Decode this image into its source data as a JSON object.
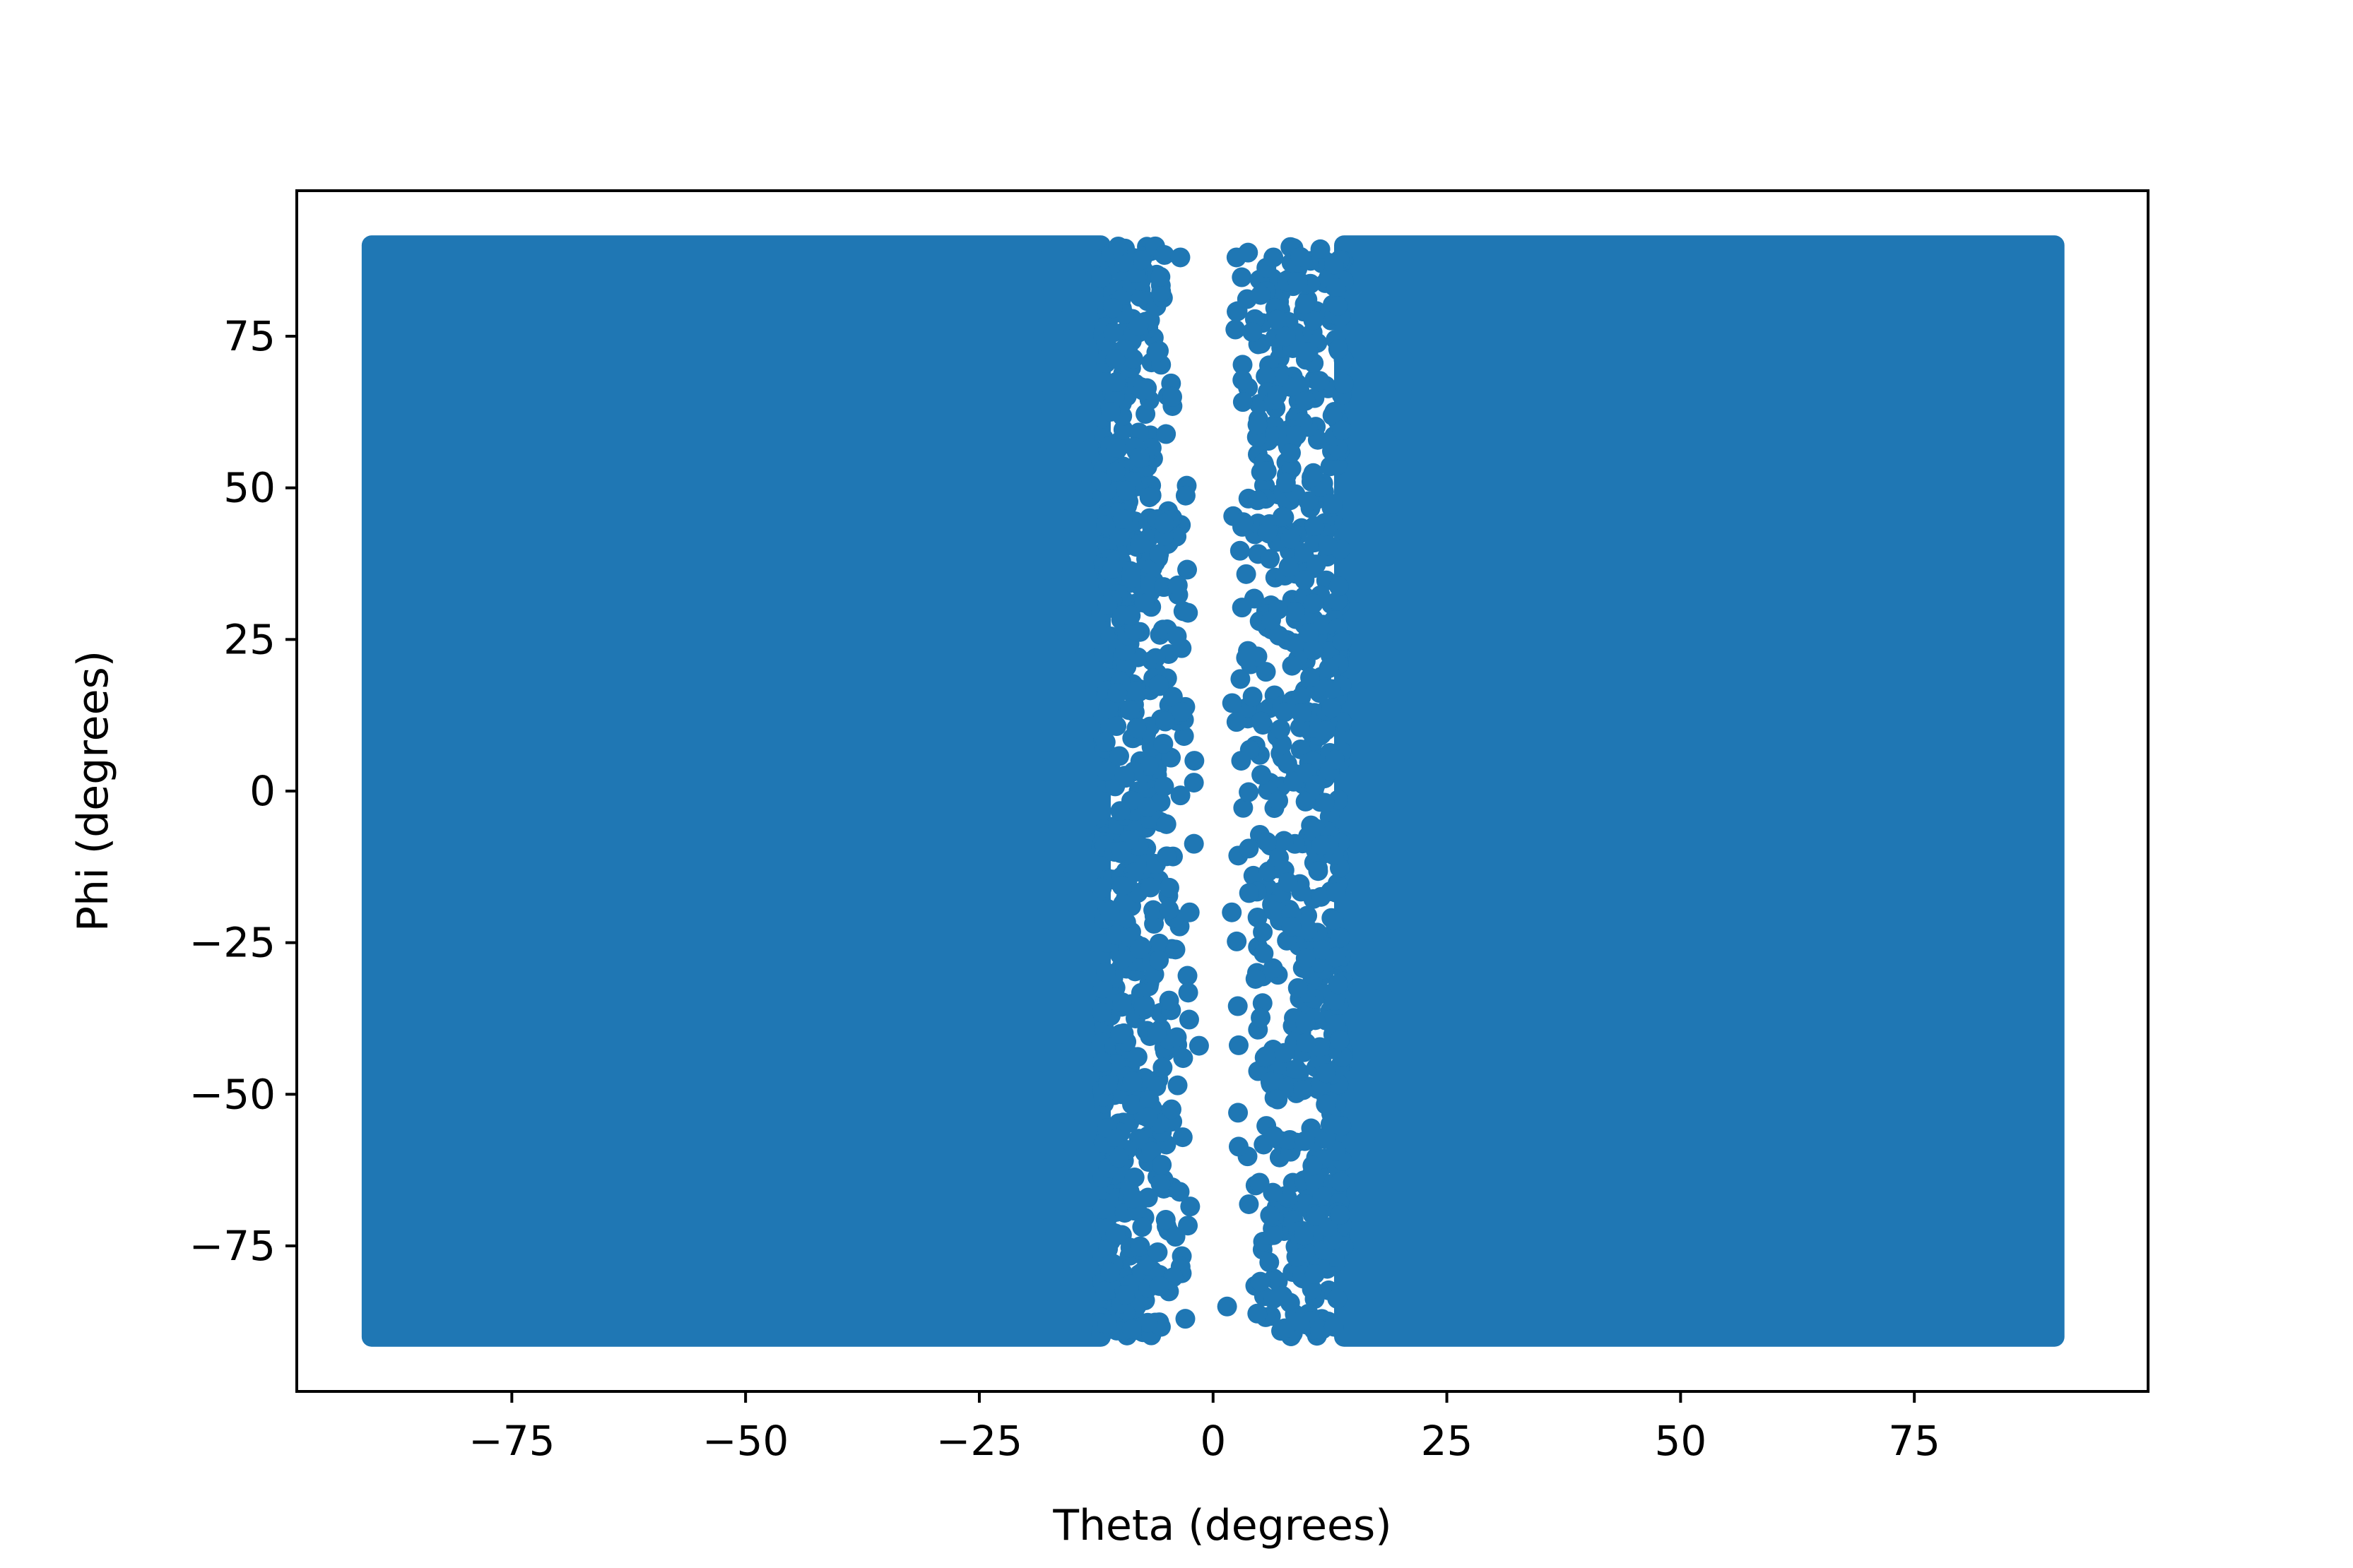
{
  "chart_data": {
    "type": "scatter",
    "title": "",
    "xlabel": "Theta (degrees)",
    "ylabel": "Phi (degrees)",
    "xlim": [
      -98,
      100
    ],
    "ylim": [
      -99,
      99
    ],
    "xticks": [
      -75,
      -50,
      -25,
      0,
      25,
      50,
      75
    ],
    "yticks": [
      -75,
      -50,
      -25,
      0,
      25,
      50,
      75
    ],
    "xtick_labels": [
      "−75",
      "−50",
      "−25",
      "0",
      "25",
      "50",
      "75"
    ],
    "ytick_labels": [
      "−75",
      "−50",
      "−25",
      "0",
      "25",
      "50",
      "75"
    ],
    "grid": false,
    "legend": "none",
    "series": [
      {
        "color": "#1f77b4",
        "marker": "circle",
        "dense_regions": [
          {
            "x_range": [
              -90,
              -12
            ],
            "y_range": [
              -90,
              90
            ],
            "density": "solid"
          },
          {
            "x_range": [
              14,
              90
            ],
            "y_range": [
              -90,
              90
            ],
            "density": "solid"
          }
        ],
        "sparse_regions": [
          {
            "x_range": [
              -12,
              -2
            ],
            "y_range": [
              -90,
              90
            ],
            "density": "scattered"
          },
          {
            "x_range": [
              2,
              14
            ],
            "y_range": [
              -90,
              90
            ],
            "density": "scattered"
          }
        ],
        "gap_x_range": [
          -2,
          2
        ]
      }
    ]
  }
}
